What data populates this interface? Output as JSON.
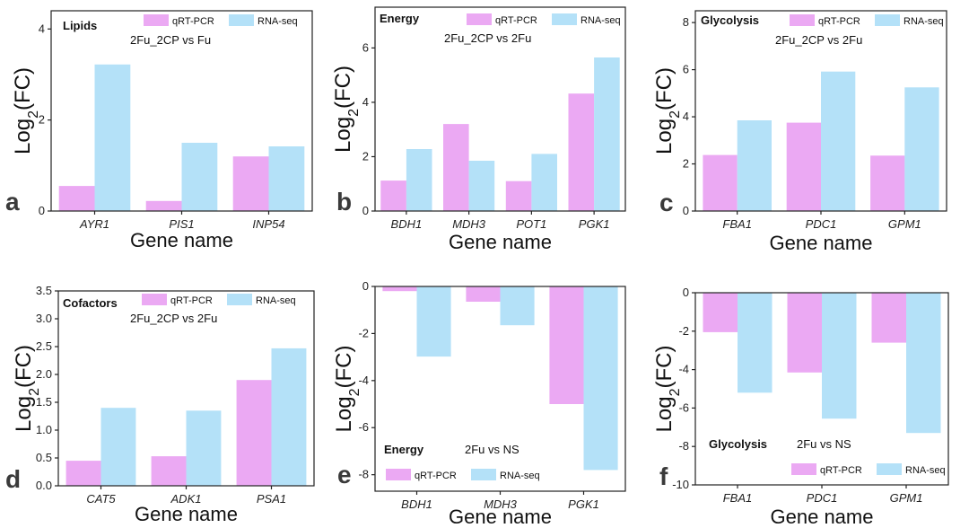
{
  "colors": {
    "qrt": "#EBA9F3",
    "rna": "#B4E1F8",
    "axis": "#222222"
  },
  "chart_data": [
    {
      "panel_label": "a",
      "type": "bar",
      "title": "Lipids",
      "subtitle": "2Fu_2CP vs Fu",
      "xlabel": "Gene name",
      "ylabel_main": "Log",
      "ylabel_sub": "2",
      "ylabel_tail": "(FC)",
      "categories": [
        "AYR1",
        "PIS1",
        "INP54"
      ],
      "series": [
        {
          "name": "qRT-PCR",
          "values": [
            0.55,
            0.22,
            1.2
          ]
        },
        {
          "name": "RNA-seq",
          "values": [
            3.22,
            1.5,
            1.42
          ]
        }
      ],
      "ylim": [
        0,
        4.4
      ],
      "yticks": [
        0,
        2,
        4
      ],
      "ytick_labels": [
        "0",
        "2",
        "4"
      ]
    },
    {
      "panel_label": "b",
      "type": "bar",
      "title": "Energy",
      "subtitle": "2Fu_2CP vs 2Fu",
      "xlabel": "Gene name",
      "ylabel_main": "Log",
      "ylabel_sub": "2",
      "ylabel_tail": "(FC)",
      "categories": [
        "BDH1",
        "MDH3",
        "POT1",
        "PGK1"
      ],
      "series": [
        {
          "name": "qRT-PCR",
          "values": [
            1.12,
            3.2,
            1.1,
            4.32
          ]
        },
        {
          "name": "RNA-seq",
          "values": [
            2.28,
            1.85,
            2.1,
            5.65
          ]
        }
      ],
      "ylim": [
        0,
        7.5
      ],
      "yticks": [
        0,
        2,
        4,
        6
      ],
      "ytick_labels": [
        "0",
        "2",
        "4",
        "6"
      ]
    },
    {
      "panel_label": "c",
      "type": "bar",
      "title": "Glycolysis",
      "subtitle": "2Fu_2CP vs 2Fu",
      "xlabel": "Gene name",
      "ylabel_main": "Log",
      "ylabel_sub": "2",
      "ylabel_tail": "(FC)",
      "categories": [
        "FBA1",
        "PDC1",
        "GPM1"
      ],
      "series": [
        {
          "name": "qRT-PCR",
          "values": [
            2.38,
            3.75,
            2.35
          ]
        },
        {
          "name": "RNA-seq",
          "values": [
            3.85,
            5.92,
            5.25
          ]
        }
      ],
      "ylim": [
        0,
        8.5
      ],
      "yticks": [
        0,
        2,
        4,
        6,
        8
      ],
      "ytick_labels": [
        "0",
        "2",
        "4",
        "6",
        "8"
      ]
    },
    {
      "panel_label": "d",
      "type": "bar",
      "title": "Cofactors",
      "subtitle": "2Fu_2CP vs 2Fu",
      "xlabel": "Gene name",
      "ylabel_main": "Log",
      "ylabel_sub": "2",
      "ylabel_tail": "(FC)",
      "categories": [
        "CAT5",
        "ADK1",
        "PSA1"
      ],
      "series": [
        {
          "name": "qRT-PCR",
          "values": [
            0.45,
            0.53,
            1.9
          ]
        },
        {
          "name": "RNA-seq",
          "values": [
            1.4,
            1.35,
            2.47
          ]
        }
      ],
      "ylim": [
        0,
        3.5
      ],
      "yticks": [
        0,
        0.5,
        1,
        1.5,
        2,
        2.5,
        3,
        3.5
      ],
      "ytick_labels": [
        "0.0",
        "0.5",
        "1.0",
        "1.5",
        "2.0",
        "2.5",
        "3.0",
        "3.5"
      ]
    },
    {
      "panel_label": "e",
      "type": "bar",
      "title": "Energy",
      "subtitle": "2Fu vs NS",
      "xlabel": "Gene name",
      "ylabel_main": "Log",
      "ylabel_sub": "2",
      "ylabel_tail": "(FC)",
      "categories": [
        "BDH1",
        "MDH3",
        "PGK1"
      ],
      "series": [
        {
          "name": "qRT-PCR",
          "values": [
            -0.2,
            -0.65,
            -5.0
          ]
        },
        {
          "name": "RNA-seq",
          "values": [
            -2.98,
            -1.65,
            -7.8
          ]
        }
      ],
      "ylim": [
        -8.7,
        0
      ],
      "yticks": [
        0,
        -2,
        -4,
        -6,
        -8
      ],
      "ytick_labels": [
        "0",
        "-2",
        "-4",
        "-6",
        "-8"
      ]
    },
    {
      "panel_label": "f",
      "type": "bar",
      "title": "Glycolysis",
      "subtitle": "2Fu vs NS",
      "xlabel": "Gene name",
      "ylabel_main": "Log",
      "ylabel_sub": "2",
      "ylabel_tail": "(FC)",
      "categories": [
        "FBA1",
        "PDC1",
        "GPM1"
      ],
      "series": [
        {
          "name": "qRT-PCR",
          "values": [
            -2.05,
            -4.15,
            -2.6
          ]
        },
        {
          "name": "RNA-seq",
          "values": [
            -5.2,
            -6.55,
            -7.3
          ]
        }
      ],
      "ylim": [
        -10,
        0
      ],
      "yticks": [
        0,
        -2,
        -4,
        -6,
        -8,
        -10
      ],
      "ytick_labels": [
        "0",
        "-2",
        "-4",
        "-6",
        "-8",
        "-10"
      ]
    }
  ]
}
